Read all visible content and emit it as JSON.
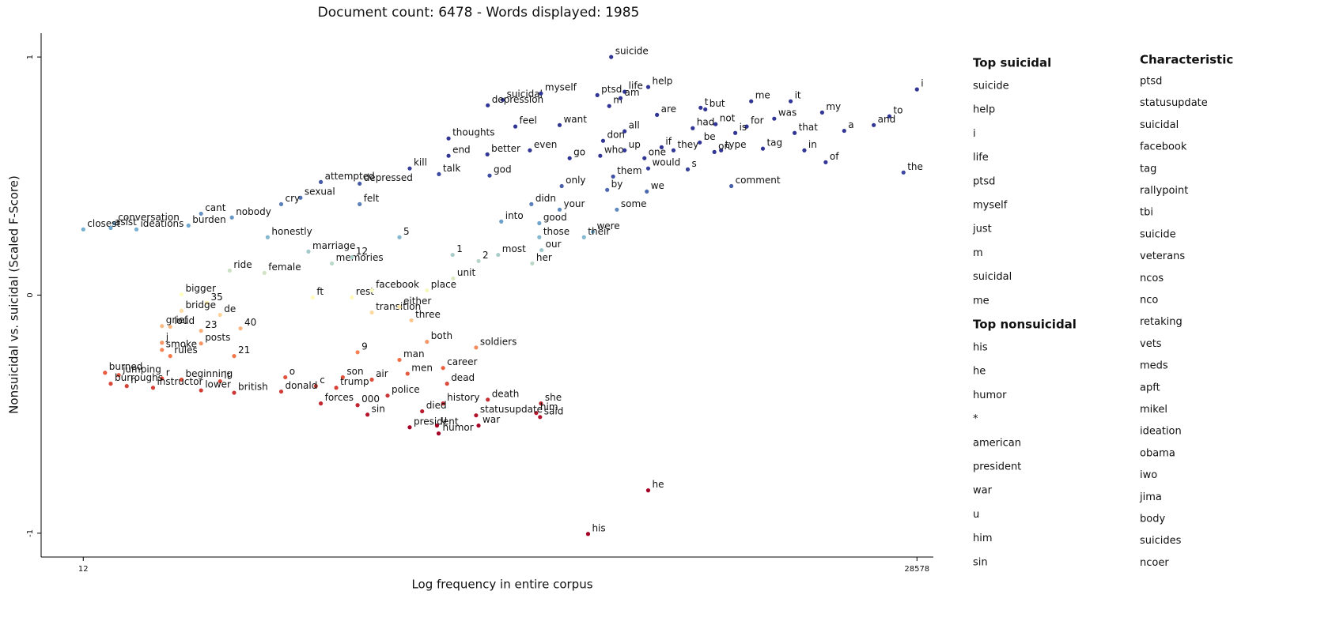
{
  "chart_data": {
    "type": "scatter",
    "title": "Document count: 6478 - Words displayed: 1985",
    "x_label": "Log frequency in entire corpus",
    "y_label": "Nonsuicidal vs. suicidal (Scaled F-Score)",
    "xscale": "log",
    "xlim": [
      8.1,
      33300
    ],
    "xticks": [
      12,
      28578
    ],
    "ylim": [
      -1.1,
      1.1
    ],
    "yticks": [
      1,
      0,
      -1
    ],
    "colormap": "RdYlBu",
    "labels": [
      "suicide",
      "help",
      "life",
      "ptsd",
      "i",
      "suicidal",
      "myself",
      "m",
      "am",
      "are",
      "t",
      "but",
      "me",
      "it",
      "my",
      "to",
      "and",
      "a",
      "was",
      "not",
      "for",
      "is",
      "that",
      "had",
      "depression",
      "feel",
      "want",
      "don",
      "all",
      "thoughts",
      "better",
      "even",
      "go",
      "who",
      "up",
      "if",
      "they",
      "be",
      "type",
      "tag",
      "in",
      "of",
      "the",
      "on",
      "one",
      "would",
      "s",
      "comment",
      "end",
      "kill",
      "talk",
      "god",
      "them",
      "by",
      "we",
      "only",
      "attempted",
      "depressed",
      "sexual",
      "cry",
      "felt",
      "didn",
      "your",
      "some",
      "cant",
      "nobody",
      "conversation",
      "closest",
      "asist",
      "ideations",
      "burden",
      "honestly",
      "into",
      "good",
      "were",
      "those",
      "their",
      "5",
      "marriage",
      "memories",
      "12",
      "ride",
      "female",
      "1",
      "2",
      "our",
      "most",
      "her",
      "unit",
      "ft",
      "rest",
      "facebook",
      "place",
      "bigger",
      "35",
      "bridge",
      "de",
      "40",
      "loud",
      "grief",
      "23",
      "transition",
      "either",
      "three",
      "j",
      "posts",
      "21",
      "rules",
      "smoke",
      "9",
      "both",
      "soldiers",
      "man",
      "men",
      "career",
      "son",
      "air",
      "o",
      "burned",
      "jumping",
      "r",
      "beginning",
      "lt",
      "burroughs",
      "h",
      "instructor",
      "lower",
      "british",
      "trump",
      "c",
      "dead",
      "police",
      "death",
      "she",
      "him",
      "said",
      "donald",
      "forces",
      "000",
      "sin",
      "history",
      "died",
      "statusupdate",
      "u",
      "war",
      "president",
      "humor",
      "he",
      "his"
    ],
    "x": [
      1650,
      2330,
      1870,
      1450,
      28578,
      600,
      857,
      1620,
      1800,
      2530,
      3800,
      3970,
      6090,
      8800,
      11800,
      22100,
      19100,
      14500,
      7550,
      4370,
      5840,
      5250,
      9130,
      3530,
      522,
      675,
      1020,
      1530,
      1870,
      362,
      520,
      773,
      1120,
      1490,
      1870,
      2640,
      2950,
      3770,
      4600,
      6790,
      10000,
      12200,
      25200,
      4320,
      2250,
      2330,
      3370,
      5060,
      362,
      252,
      331,
      531,
      1680,
      1590,
      2300,
      1040,
      110,
      158,
      91,
      76,
      158,
      784,
      1020,
      1740,
      36,
      48,
      16,
      12,
      15.5,
      19.7,
      32,
      67,
      592,
      844,
      1390,
      844,
      1280,
      229,
      98,
      122,
      147,
      47,
      65,
      376,
      479,
      862,
      575,
      790,
      378,
      102,
      147,
      177,
      296,
      30,
      38,
      30,
      43,
      52,
      27,
      25,
      36,
      177,
      229,
      256,
      25,
      36,
      49,
      27,
      25,
      155,
      296,
      468,
      229,
      247,
      344,
      135,
      177,
      79,
      14.7,
      16.7,
      25,
      30,
      43,
      15.5,
      18,
      23,
      36,
      49,
      127,
      105,
      357,
      205,
      522,
      857,
      820,
      850,
      76,
      110,
      155,
      170,
      344,
      283,
      468,
      325,
      479,
      252,
      330,
      2330,
      1330
    ],
    "y": [
      1.0,
      0.874,
      0.854,
      0.84,
      0.864,
      0.82,
      0.847,
      0.794,
      0.827,
      0.757,
      0.787,
      0.78,
      0.814,
      0.814,
      0.767,
      0.751,
      0.714,
      0.69,
      0.741,
      0.718,
      0.708,
      0.681,
      0.681,
      0.701,
      0.797,
      0.708,
      0.714,
      0.648,
      0.688,
      0.658,
      0.591,
      0.608,
      0.575,
      0.585,
      0.608,
      0.621,
      0.608,
      0.641,
      0.608,
      0.615,
      0.608,
      0.558,
      0.515,
      0.601,
      0.575,
      0.532,
      0.528,
      0.458,
      0.585,
      0.532,
      0.508,
      0.502,
      0.498,
      0.442,
      0.435,
      0.458,
      0.475,
      0.468,
      0.409,
      0.382,
      0.382,
      0.382,
      0.359,
      0.359,
      0.342,
      0.326,
      0.302,
      0.276,
      0.282,
      0.276,
      0.292,
      0.243,
      0.309,
      0.302,
      0.266,
      0.243,
      0.243,
      0.243,
      0.183,
      0.133,
      0.159,
      0.103,
      0.093,
      0.169,
      0.143,
      0.189,
      0.169,
      0.133,
      0.07,
      -0.01,
      -0.01,
      0.02,
      0.02,
      0.003,
      -0.033,
      -0.066,
      -0.083,
      -0.14,
      -0.133,
      -0.13,
      -0.15,
      -0.073,
      -0.05,
      -0.106,
      -0.2,
      -0.203,
      -0.256,
      -0.256,
      -0.23,
      -0.24,
      -0.196,
      -0.22,
      -0.272,
      -0.33,
      -0.306,
      -0.345,
      -0.355,
      -0.345,
      -0.326,
      -0.336,
      -0.35,
      -0.355,
      -0.362,
      -0.372,
      -0.382,
      -0.389,
      -0.4,
      -0.41,
      -0.389,
      -0.382,
      -0.372,
      -0.422,
      -0.439,
      -0.455,
      -0.495,
      -0.512,
      -0.405,
      -0.455,
      -0.462,
      -0.502,
      -0.455,
      -0.488,
      -0.505,
      -0.548,
      -0.548,
      -0.555,
      -0.581,
      -0.82,
      -1.003
    ]
  },
  "term_lists": {
    "top_suicidal": {
      "title": "Top suicidal",
      "items": [
        "suicide",
        "help",
        "i",
        "life",
        "ptsd",
        "myself",
        "just",
        "m",
        "suicidal",
        "me"
      ]
    },
    "top_nonsuicidal": {
      "title": "Top nonsuicidal",
      "items": [
        "his",
        "he",
        "humor",
        "*",
        "american",
        "president",
        "war",
        "u",
        "him",
        "sin"
      ]
    },
    "characteristic": {
      "title": "Characteristic",
      "items": [
        "ptsd",
        "statusupdate",
        "suicidal",
        "facebook",
        "tag",
        "rallypoint",
        "tbi",
        "suicide",
        "veterans",
        "ncos",
        "nco",
        "retaking",
        "vets",
        "meds",
        "apft",
        "mikel",
        "ideation",
        "obama",
        "iwo",
        "jima",
        "body",
        "suicides",
        "ncoer"
      ]
    }
  }
}
